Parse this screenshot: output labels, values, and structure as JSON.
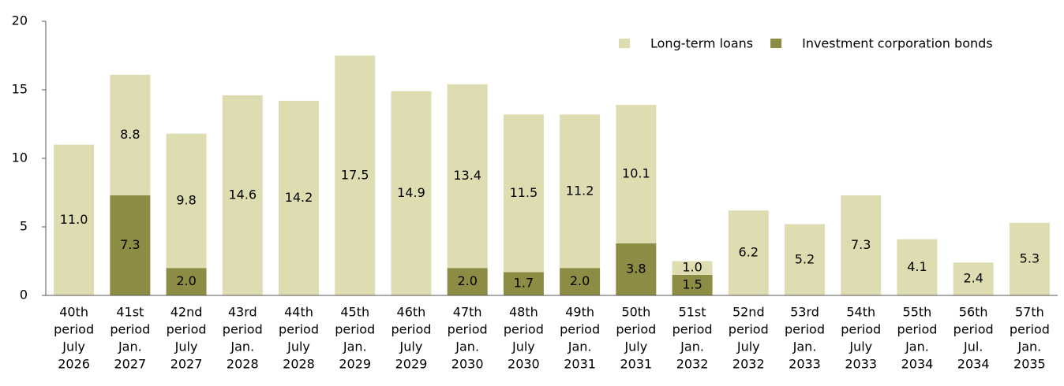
{
  "chart_data": {
    "type": "stacked_bar",
    "categories": [
      [
        "40th",
        "period",
        "July",
        "2026"
      ],
      [
        "41st",
        "period",
        "Jan.",
        "2027"
      ],
      [
        "42nd",
        "period",
        "July",
        "2027"
      ],
      [
        "43rd",
        "period",
        "Jan.",
        "2028"
      ],
      [
        "44th",
        "period",
        "July",
        "2028"
      ],
      [
        "45th",
        "period",
        "Jan.",
        "2029"
      ],
      [
        "46th",
        "period",
        "July",
        "2029"
      ],
      [
        "47th",
        "period",
        "Jan.",
        "2030"
      ],
      [
        "48th",
        "period",
        "July",
        "2030"
      ],
      [
        "49th",
        "period",
        "Jan.",
        "2031"
      ],
      [
        "50th",
        "period",
        "July",
        "2031"
      ],
      [
        "51st",
        "period",
        "Jan.",
        "2032"
      ],
      [
        "52nd",
        "period",
        "July",
        "2032"
      ],
      [
        "53rd",
        "period",
        "Jan.",
        "2033"
      ],
      [
        "54th",
        "period",
        "July",
        "2033"
      ],
      [
        "55th",
        "period",
        "Jan.",
        "2034"
      ],
      [
        "56th",
        "period",
        "Jul.",
        "2034"
      ],
      [
        "57th",
        "period",
        "Jan.",
        "2035"
      ]
    ],
    "series": [
      {
        "name": "Investment corporation bonds",
        "color": "#8c8c44",
        "values": [
          null,
          7.3,
          2.0,
          null,
          null,
          null,
          null,
          2.0,
          1.7,
          2.0,
          3.8,
          1.5,
          null,
          null,
          null,
          null,
          null,
          null
        ],
        "value_labels": [
          null,
          "7.3",
          "2.0",
          null,
          null,
          null,
          null,
          "2.0",
          "1.7",
          "2.0",
          "3.8",
          "1.5",
          null,
          null,
          null,
          null,
          null,
          null
        ]
      },
      {
        "name": "Long-term loans",
        "color": "#deddb2",
        "values": [
          11.0,
          8.8,
          9.8,
          14.6,
          14.2,
          17.5,
          14.9,
          13.4,
          11.5,
          11.2,
          10.1,
          1.0,
          6.2,
          5.2,
          7.3,
          4.1,
          2.4,
          5.3
        ],
        "value_labels": [
          "11.0",
          "8.8",
          "9.8",
          "14.6",
          "14.2",
          "17.5",
          "14.9",
          "13.4",
          "11.5",
          "11.2",
          "10.1",
          "1.0",
          "6.2",
          "5.2",
          "7.3",
          "4.1",
          "2.4",
          "5.3"
        ]
      }
    ],
    "ylim": [
      0,
      20
    ],
    "yticks": [
      0,
      5,
      10,
      15,
      20
    ],
    "grid": false
  }
}
